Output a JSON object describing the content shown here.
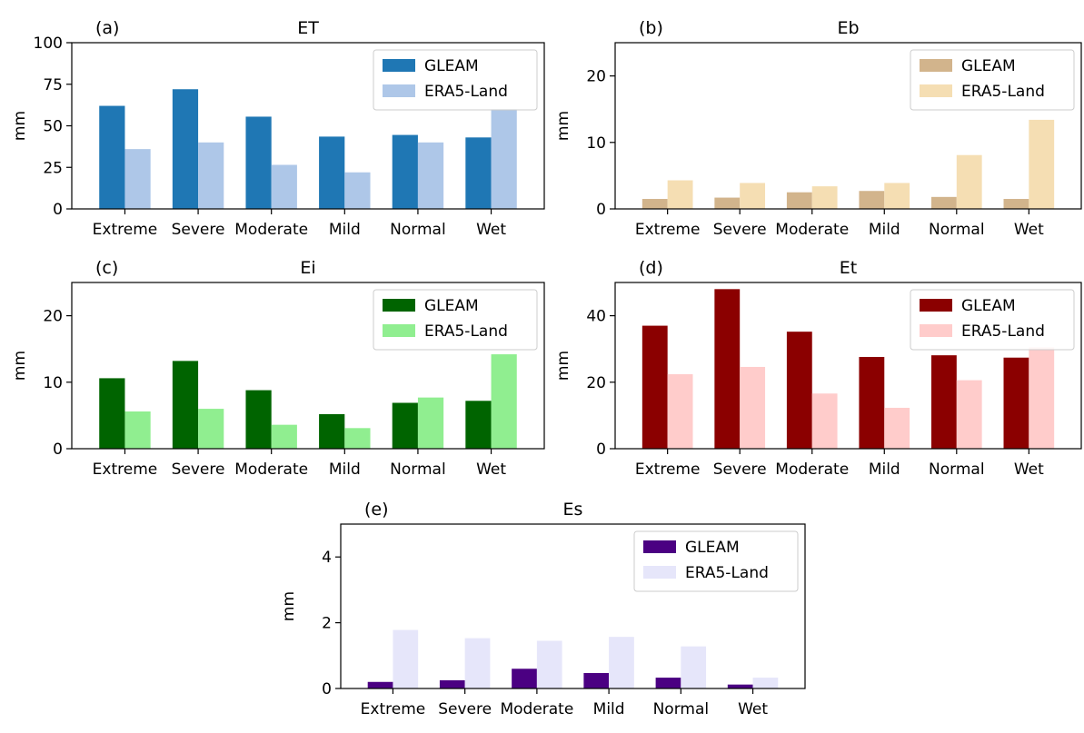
{
  "chart_data": [
    {
      "type": "bar",
      "panel": "(a)",
      "title": "ET",
      "ylabel": "mm",
      "ylim": [
        0,
        100
      ],
      "yticks": [
        0,
        25,
        50,
        75,
        100
      ],
      "categories": [
        "Extreme",
        "Severe",
        "Moderate",
        "Mild",
        "Normal",
        "Wet"
      ],
      "series": [
        {
          "name": "GLEAM",
          "color": "#1f77b4",
          "values": [
            62,
            72,
            55.5,
            43.5,
            44.5,
            43
          ]
        },
        {
          "name": "ERA5-Land",
          "color": "#aec7e8",
          "values": [
            36,
            40,
            26.5,
            22,
            40,
            60
          ]
        }
      ],
      "legend": "top-right",
      "grid": false
    },
    {
      "type": "bar",
      "panel": "(b)",
      "title": "Eb",
      "ylabel": "mm",
      "ylim": [
        0,
        25
      ],
      "yticks": [
        0,
        10,
        20
      ],
      "categories": [
        "Extreme",
        "Severe",
        "Moderate",
        "Mild",
        "Normal",
        "Wet"
      ],
      "series": [
        {
          "name": "GLEAM",
          "color": "#d2b48c",
          "values": [
            1.5,
            1.7,
            2.5,
            2.7,
            1.8,
            1.5
          ]
        },
        {
          "name": "ERA5-Land",
          "color": "#f5deb3",
          "values": [
            4.3,
            3.9,
            3.4,
            3.9,
            8.1,
            13.4
          ]
        }
      ],
      "legend": "top-right",
      "grid": false
    },
    {
      "type": "bar",
      "panel": "(c)",
      "title": "Ei",
      "ylabel": "mm",
      "ylim": [
        0,
        25
      ],
      "yticks": [
        0,
        10,
        20
      ],
      "categories": [
        "Extreme",
        "Severe",
        "Moderate",
        "Mild",
        "Normal",
        "Wet"
      ],
      "series": [
        {
          "name": "GLEAM",
          "color": "#006400",
          "values": [
            10.6,
            13.2,
            8.8,
            5.2,
            6.9,
            7.2
          ]
        },
        {
          "name": "ERA5-Land",
          "color": "#90ee90",
          "values": [
            5.6,
            6.0,
            3.6,
            3.1,
            7.7,
            14.2
          ]
        }
      ],
      "legend": "top-right",
      "grid": false
    },
    {
      "type": "bar",
      "panel": "(d)",
      "title": "Et",
      "ylabel": "mm",
      "ylim": [
        0,
        50
      ],
      "yticks": [
        0,
        20,
        40
      ],
      "categories": [
        "Extreme",
        "Severe",
        "Moderate",
        "Mild",
        "Normal",
        "Wet"
      ],
      "series": [
        {
          "name": "GLEAM",
          "color": "#8b0000",
          "values": [
            37,
            48,
            35.2,
            27.6,
            28.1,
            27.4
          ]
        },
        {
          "name": "ERA5-Land",
          "color": "#ffcccb",
          "values": [
            22.4,
            24.6,
            16.6,
            12.3,
            20.6,
            30.5
          ]
        }
      ],
      "legend": "top-right",
      "grid": false
    },
    {
      "type": "bar",
      "panel": "(e)",
      "title": "Es",
      "ylabel": "mm",
      "ylim": [
        0,
        5
      ],
      "yticks": [
        0,
        2,
        4
      ],
      "categories": [
        "Extreme",
        "Severe",
        "Moderate",
        "Mild",
        "Normal",
        "Wet"
      ],
      "series": [
        {
          "name": "GLEAM",
          "color": "#4b0082",
          "values": [
            0.2,
            0.25,
            0.6,
            0.47,
            0.33,
            0.12
          ]
        },
        {
          "name": "ERA5-Land",
          "color": "#e6e6fa",
          "values": [
            1.78,
            1.53,
            1.45,
            1.57,
            1.28,
            0.33
          ]
        }
      ],
      "legend": "top-right",
      "grid": false
    }
  ]
}
